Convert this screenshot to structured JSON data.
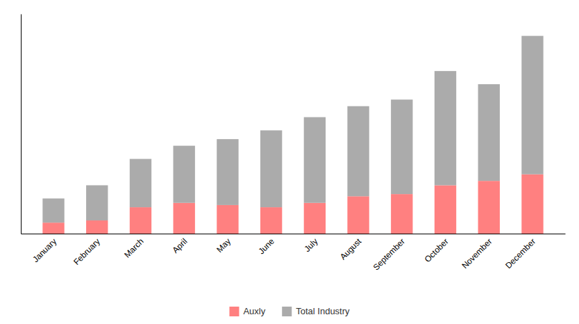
{
  "chart_data": {
    "type": "bar",
    "stacked": true,
    "categories": [
      "January",
      "February",
      "March",
      "April",
      "May",
      "June",
      "July",
      "August",
      "September",
      "October",
      "November",
      "December"
    ],
    "series": [
      {
        "name": "Auxly",
        "color": "#FF8080",
        "values": [
          5,
          6,
          12,
          14,
          13,
          12,
          14,
          17,
          18,
          22,
          24,
          27
        ]
      },
      {
        "name": "Total Industry",
        "color": "#ABABAB",
        "values": [
          11,
          16,
          22,
          26,
          30,
          35,
          39,
          41,
          43,
          52,
          44,
          63
        ]
      }
    ],
    "ylim": [
      0,
      100
    ],
    "yticks": [],
    "grid": false,
    "tick_labels": "x",
    "legend": "bottom"
  }
}
